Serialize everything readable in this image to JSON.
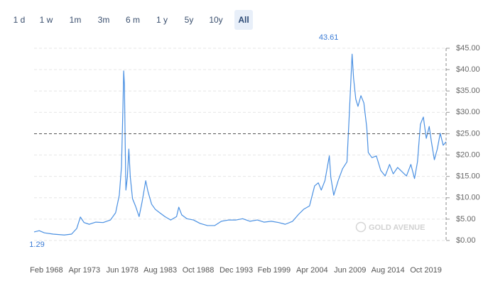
{
  "range_buttons": [
    "1 d",
    "1 w",
    "1m",
    "3m",
    "6 m",
    "1 y",
    "5y",
    "10y",
    "All"
  ],
  "selected_range": 8,
  "watermark": "GOLD AVENUE",
  "chart_data": {
    "type": "line",
    "color": "#4a90e2",
    "x": [
      1966.4,
      1967.1,
      1967.8,
      1969.0,
      1970.5,
      1971.5,
      1972.2,
      1972.7,
      1973.2,
      1973.9,
      1974.8,
      1975.8,
      1976.8,
      1977.5,
      1978.0,
      1978.3,
      1978.5,
      1978.6,
      1978.7,
      1978.8,
      1978.9,
      1979.1,
      1979.3,
      1979.5,
      1979.8,
      1980.2,
      1980.7,
      1981.1,
      1981.6,
      1981.9,
      1982.4,
      1982.9,
      1983.5,
      1984.2,
      1985.0,
      1985.8,
      1986.1,
      1986.5,
      1987.2,
      1988.1,
      1989.0,
      1990.0,
      1991.0,
      1991.9,
      1992.9,
      1993.9,
      1994.8,
      1995.8,
      1996.8,
      1997.7,
      1998.7,
      1999.7,
      2000.6,
      2001.6,
      2002.4,
      2003.1,
      2003.9,
      2004.6,
      2005.1,
      2005.5,
      2006.0,
      2006.6,
      2006.8,
      2007.2,
      2007.8,
      2008.4,
      2009.0,
      2009.3,
      2009.7,
      2009.9,
      2010.2,
      2010.5,
      2010.9,
      2011.3,
      2011.7,
      2011.9,
      2012.4,
      2013.0,
      2013.6,
      2014.2,
      2014.8,
      2015.3,
      2015.9,
      2016.5,
      2017.1,
      2017.7,
      2018.2,
      2018.6,
      2019.0,
      2019.4,
      2019.8,
      2020.2,
      2020.5,
      2020.9,
      2021.3,
      2021.7,
      2022.1,
      2022.5
    ],
    "values": [
      2.0,
      2.3,
      1.8,
      1.5,
      1.29,
      1.5,
      2.8,
      5.5,
      4.2,
      3.8,
      4.3,
      4.2,
      4.8,
      6.5,
      10.6,
      17.3,
      31.4,
      39.7,
      36.4,
      23.1,
      11.8,
      14.8,
      21.4,
      14.8,
      9.8,
      8.1,
      5.6,
      9.0,
      14.0,
      11.5,
      8.5,
      7.3,
      6.5,
      5.6,
      4.8,
      5.6,
      7.8,
      6.0,
      5.1,
      4.8,
      4.0,
      3.5,
      3.5,
      4.5,
      4.8,
      4.8,
      5.1,
      4.5,
      4.8,
      4.3,
      4.5,
      4.2,
      3.8,
      4.5,
      6.1,
      7.3,
      8.1,
      12.8,
      13.5,
      11.8,
      14.0,
      19.8,
      14.8,
      10.6,
      14.0,
      16.8,
      18.4,
      28.9,
      43.61,
      38.0,
      33.1,
      31.4,
      33.9,
      32.2,
      26.4,
      20.6,
      19.4,
      19.8,
      16.4,
      15.1,
      17.8,
      15.6,
      17.1,
      16.1,
      15.1,
      17.8,
      14.5,
      18.4,
      27.2,
      28.9,
      23.9,
      26.7,
      23.1,
      18.9,
      21.4,
      25.1,
      22.3,
      23.1
    ],
    "max_value": 43.61,
    "min_value": 1.29,
    "reference_line": 25,
    "xlim": [
      1966.4,
      2022.5
    ],
    "xticks": [
      {
        "value": 1968.08,
        "label": "Feb 1968"
      },
      {
        "value": 1973.25,
        "label": "Apr 1973"
      },
      {
        "value": 1978.42,
        "label": "Jun 1978"
      },
      {
        "value": 1983.58,
        "label": "Aug 1983"
      },
      {
        "value": 1988.75,
        "label": "Oct 1988"
      },
      {
        "value": 1993.92,
        "label": "Dec 1993"
      },
      {
        "value": 1999.08,
        "label": "Feb 1999"
      },
      {
        "value": 2004.25,
        "label": "Apr 2004"
      },
      {
        "value": 2009.42,
        "label": "Jun 2009"
      },
      {
        "value": 2014.58,
        "label": "Aug 2014"
      },
      {
        "value": 2019.75,
        "label": "Oct 2019"
      }
    ],
    "ylim": [
      0,
      45
    ],
    "yticks": [
      {
        "value": 0,
        "label": "$0.00"
      },
      {
        "value": 5,
        "label": "$5.00"
      },
      {
        "value": 10,
        "label": "$10.00"
      },
      {
        "value": 15,
        "label": "$15.00"
      },
      {
        "value": 20,
        "label": "$20.00"
      },
      {
        "value": 25,
        "label": "$25.00"
      },
      {
        "value": 30,
        "label": "$30.00"
      },
      {
        "value": 35,
        "label": "$35.00"
      },
      {
        "value": 40,
        "label": "$40.00"
      },
      {
        "value": 45,
        "label": "$45.00"
      }
    ],
    "grid": true
  }
}
